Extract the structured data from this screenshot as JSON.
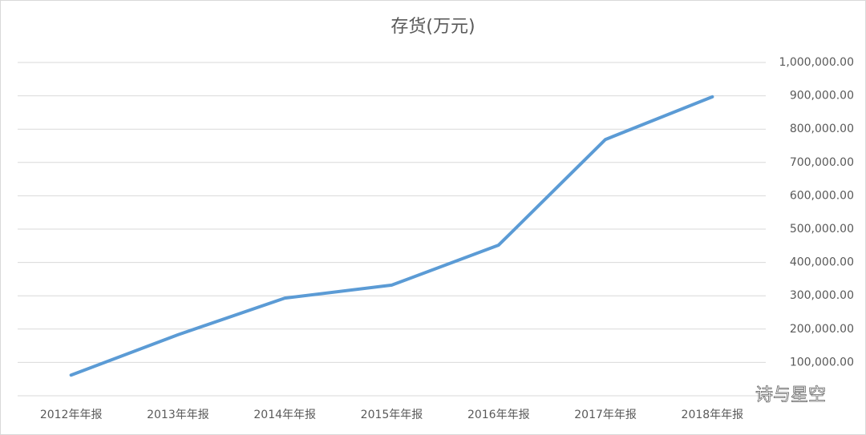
{
  "chart_data": {
    "type": "line",
    "title": "存货(万元)",
    "categories": [
      "2012年年报",
      "2013年年报",
      "2014年年报",
      "2015年年报",
      "2016年年报",
      "2017年年报",
      "2018年年报"
    ],
    "series": [
      {
        "name": "存货",
        "color": "#5b9bd5",
        "values": [
          62000,
          183000,
          293000,
          332000,
          452000,
          769000,
          897000
        ]
      }
    ],
    "ylim": [
      0,
      1000000
    ],
    "yticks": [
      {
        "value": 100000,
        "label": "100,000.00"
      },
      {
        "value": 200000,
        "label": "200,000.00"
      },
      {
        "value": 300000,
        "label": "300,000.00"
      },
      {
        "value": 400000,
        "label": "400,000.00"
      },
      {
        "value": 500000,
        "label": "500,000.00"
      },
      {
        "value": 600000,
        "label": "600,000.00"
      },
      {
        "value": 700000,
        "label": "700,000.00"
      },
      {
        "value": 800000,
        "label": "800,000.00"
      },
      {
        "value": 900000,
        "label": "900,000.00"
      },
      {
        "value": 1000000,
        "label": "1,000,000.00"
      }
    ],
    "grid": true,
    "yaxis_side": "right",
    "watermark": "诗与星空"
  }
}
